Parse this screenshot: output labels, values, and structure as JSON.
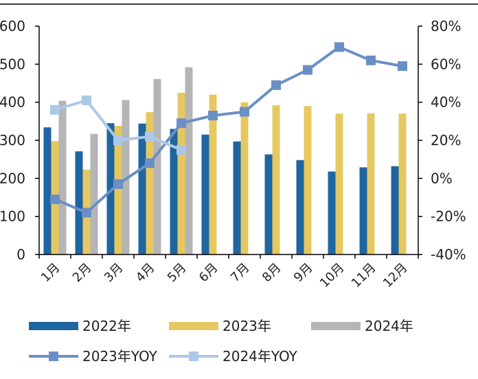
{
  "colors": {
    "bar_2022": "#1f65a0",
    "bar_2023": "#e6c862",
    "bar_2024": "#b5b5b5",
    "yoy_2023": "#6a8fc7",
    "yoy_2024": "#abc8e6",
    "axis": "#000000"
  },
  "chart_data": {
    "type": "bar",
    "categories": [
      "1月",
      "2月",
      "3月",
      "4月",
      "5月",
      "6月",
      "7月",
      "8月",
      "9月",
      "10月",
      "11月",
      "12月"
    ],
    "ylim": [
      0,
      600
    ],
    "yticks": [
      0,
      100,
      200,
      300,
      400,
      500,
      600
    ],
    "y2lim": [
      -40,
      80
    ],
    "y2ticks": [
      -40,
      -20,
      0,
      20,
      40,
      60,
      80
    ],
    "y2tick_labels": [
      "-40%",
      "-20%",
      "0%",
      "20%",
      "40%",
      "60%",
      "80%"
    ],
    "grid": false,
    "legend_position": "bottom",
    "series": [
      {
        "name": "2022年",
        "type": "bar",
        "axis": "left",
        "values": [
          334,
          271,
          345,
          344,
          330,
          315,
          297,
          263,
          248,
          218,
          229,
          232
        ]
      },
      {
        "name": "2023年",
        "type": "bar",
        "axis": "left",
        "values": [
          298,
          223,
          338,
          374,
          425,
          420,
          400,
          392,
          390,
          370,
          371,
          370
        ]
      },
      {
        "name": "2024年",
        "type": "bar",
        "axis": "left",
        "values": [
          404,
          317,
          406,
          461,
          492,
          null,
          null,
          null,
          null,
          null,
          null,
          null
        ]
      },
      {
        "name": "2023年YOY",
        "type": "line",
        "axis": "right",
        "values": [
          -11,
          -18,
          -3,
          8,
          29,
          33,
          35,
          49,
          57,
          69,
          62,
          59
        ]
      },
      {
        "name": "2024年YOY",
        "type": "line",
        "axis": "right",
        "values": [
          36,
          41,
          20,
          22,
          15,
          null,
          null,
          null,
          null,
          null,
          null,
          null
        ]
      }
    ]
  }
}
